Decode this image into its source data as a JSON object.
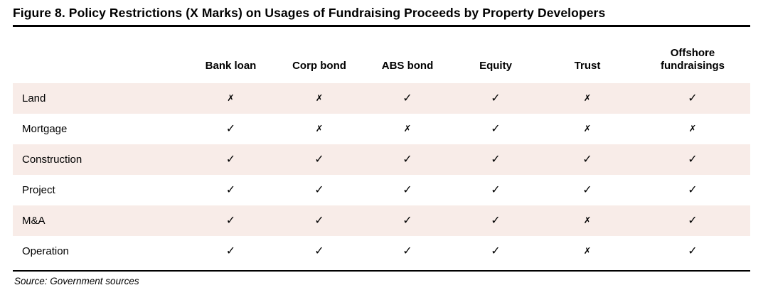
{
  "figure": {
    "title": "Figure 8. Policy Restrictions (X Marks) on Usages of Fundraising Proceeds by Property Developers",
    "source_note": "Source: Government sources"
  },
  "colors": {
    "row_shade": "#f8ece8",
    "rule": "#000000",
    "text": "#000000"
  },
  "marks": {
    "allowed_glyph": "✓",
    "restricted_glyph": "✗"
  },
  "chart_data": {
    "type": "table",
    "title": "Figure 8. Policy Restrictions (X Marks) on Usages of Fundraising Proceeds by Property Developers",
    "corner_header": "",
    "columns": [
      "Bank loan",
      "Corp bond",
      "ABS bond",
      "Equity",
      "Trust",
      "Offshore fundraisings"
    ],
    "rows": [
      {
        "label": "Land",
        "marks": [
          "✗",
          "✗",
          "✓",
          "✓",
          "✗",
          "✓"
        ]
      },
      {
        "label": "Mortgage",
        "marks": [
          "✓",
          "✗",
          "✗",
          "✓",
          "✗",
          "✗"
        ]
      },
      {
        "label": "Construction",
        "marks": [
          "✓",
          "✓",
          "✓",
          "✓",
          "✓",
          "✓"
        ]
      },
      {
        "label": "Project",
        "marks": [
          "✓",
          "✓",
          "✓",
          "✓",
          "✓",
          "✓"
        ]
      },
      {
        "label": "M&A",
        "marks": [
          "✓",
          "✓",
          "✓",
          "✓",
          "✗",
          "✓"
        ]
      },
      {
        "label": "Operation",
        "marks": [
          "✓",
          "✓",
          "✓",
          "✓",
          "✗",
          "✓"
        ]
      }
    ],
    "layout": {
      "shaded_rows": [
        0,
        2,
        4
      ],
      "shade_color": "#f8ece8",
      "header_rule": "thick-top",
      "footer_rule": "thin-bottom"
    },
    "source": "Source: Government sources"
  }
}
